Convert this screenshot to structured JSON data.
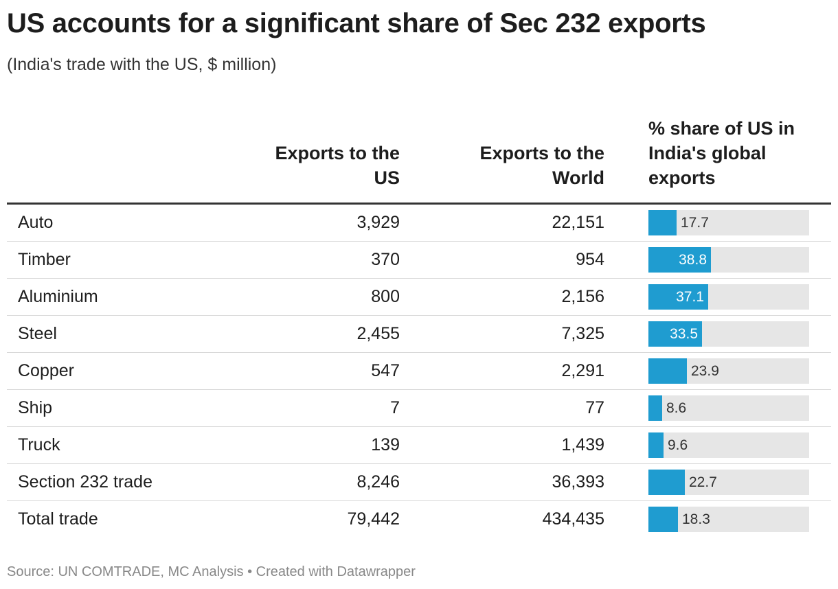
{
  "title": "US accounts for a significant share of Sec 232 exports",
  "subtitle": "(India's trade with the US, $ million)",
  "source": "Source: UN COMTRADE, MC Analysis • Created with Datawrapper",
  "colors": {
    "bar": "#1f9cd0",
    "bar_track": "#e6e6e6"
  },
  "chart_data": {
    "type": "table",
    "columns": [
      "",
      "Exports to the US",
      "Exports to the World",
      "% share of US in India's global exports"
    ],
    "column_lines": {
      "us": [
        "Exports to the",
        "US"
      ],
      "world": [
        "Exports to the",
        "World"
      ],
      "share": [
        "% share of US in",
        "India's global",
        "exports"
      ]
    },
    "bar_max": 100,
    "rows": [
      {
        "name": "Auto",
        "us": "3,929",
        "world": "22,151",
        "share": 17.7,
        "share_label": "17.7"
      },
      {
        "name": "Timber",
        "us": "370",
        "world": "954",
        "share": 38.8,
        "share_label": "38.8"
      },
      {
        "name": "Aluminium",
        "us": "800",
        "world": "2,156",
        "share": 37.1,
        "share_label": "37.1"
      },
      {
        "name": "Steel",
        "us": "2,455",
        "world": "7,325",
        "share": 33.5,
        "share_label": "33.5"
      },
      {
        "name": "Copper",
        "us": "547",
        "world": "2,291",
        "share": 23.9,
        "share_label": "23.9"
      },
      {
        "name": "Ship",
        "us": "7",
        "world": "77",
        "share": 8.6,
        "share_label": "8.6"
      },
      {
        "name": "Truck",
        "us": "139",
        "world": "1,439",
        "share": 9.6,
        "share_label": "9.6"
      },
      {
        "name": "Section 232 trade",
        "us": "8,246",
        "world": "36,393",
        "share": 22.7,
        "share_label": "22.7"
      },
      {
        "name": "Total trade",
        "us": "79,442",
        "world": "434,435",
        "share": 18.3,
        "share_label": "18.3"
      }
    ]
  }
}
